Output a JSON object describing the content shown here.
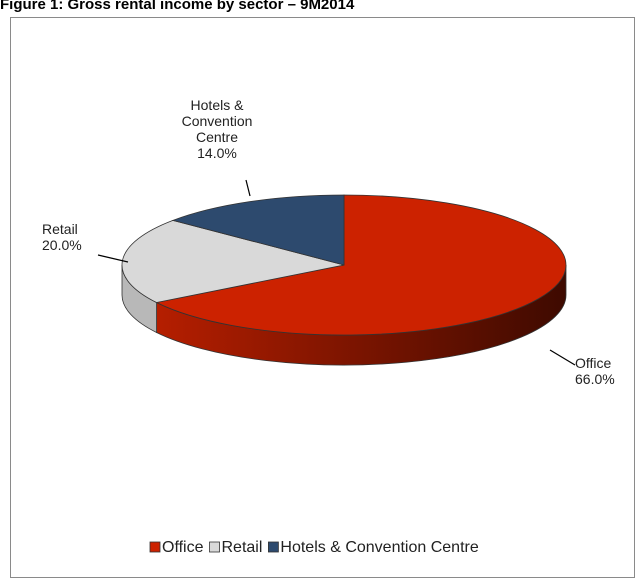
{
  "figure_title": "Figure 1: Gross rental income by sector – 9M2014",
  "colors": {
    "office": "#cc2200",
    "office_dark": "#5a1000",
    "retail": "#d9d9d9",
    "retail_dark": "#b8b8b8",
    "hotels": "#2d4a6e",
    "hotels_dark": "#1f3350"
  },
  "chart_data": {
    "type": "pie",
    "title": "",
    "style": "3d",
    "categories": [
      "Office",
      "Retail",
      "Hotels & Convention Centre"
    ],
    "values": [
      66.0,
      20.0,
      14.0
    ],
    "value_labels": [
      "66.0%",
      "20.0%",
      "14.0%"
    ],
    "slice_labels": [
      [
        "Office",
        "66.0%"
      ],
      [
        "Retail",
        "20.0%"
      ],
      [
        "Hotels &",
        "Convention",
        "Centre",
        "14.0%"
      ]
    ],
    "legend": {
      "placement": "bottom",
      "entries": [
        "Office",
        "Retail",
        "Hotels & Convention Centre"
      ]
    }
  }
}
